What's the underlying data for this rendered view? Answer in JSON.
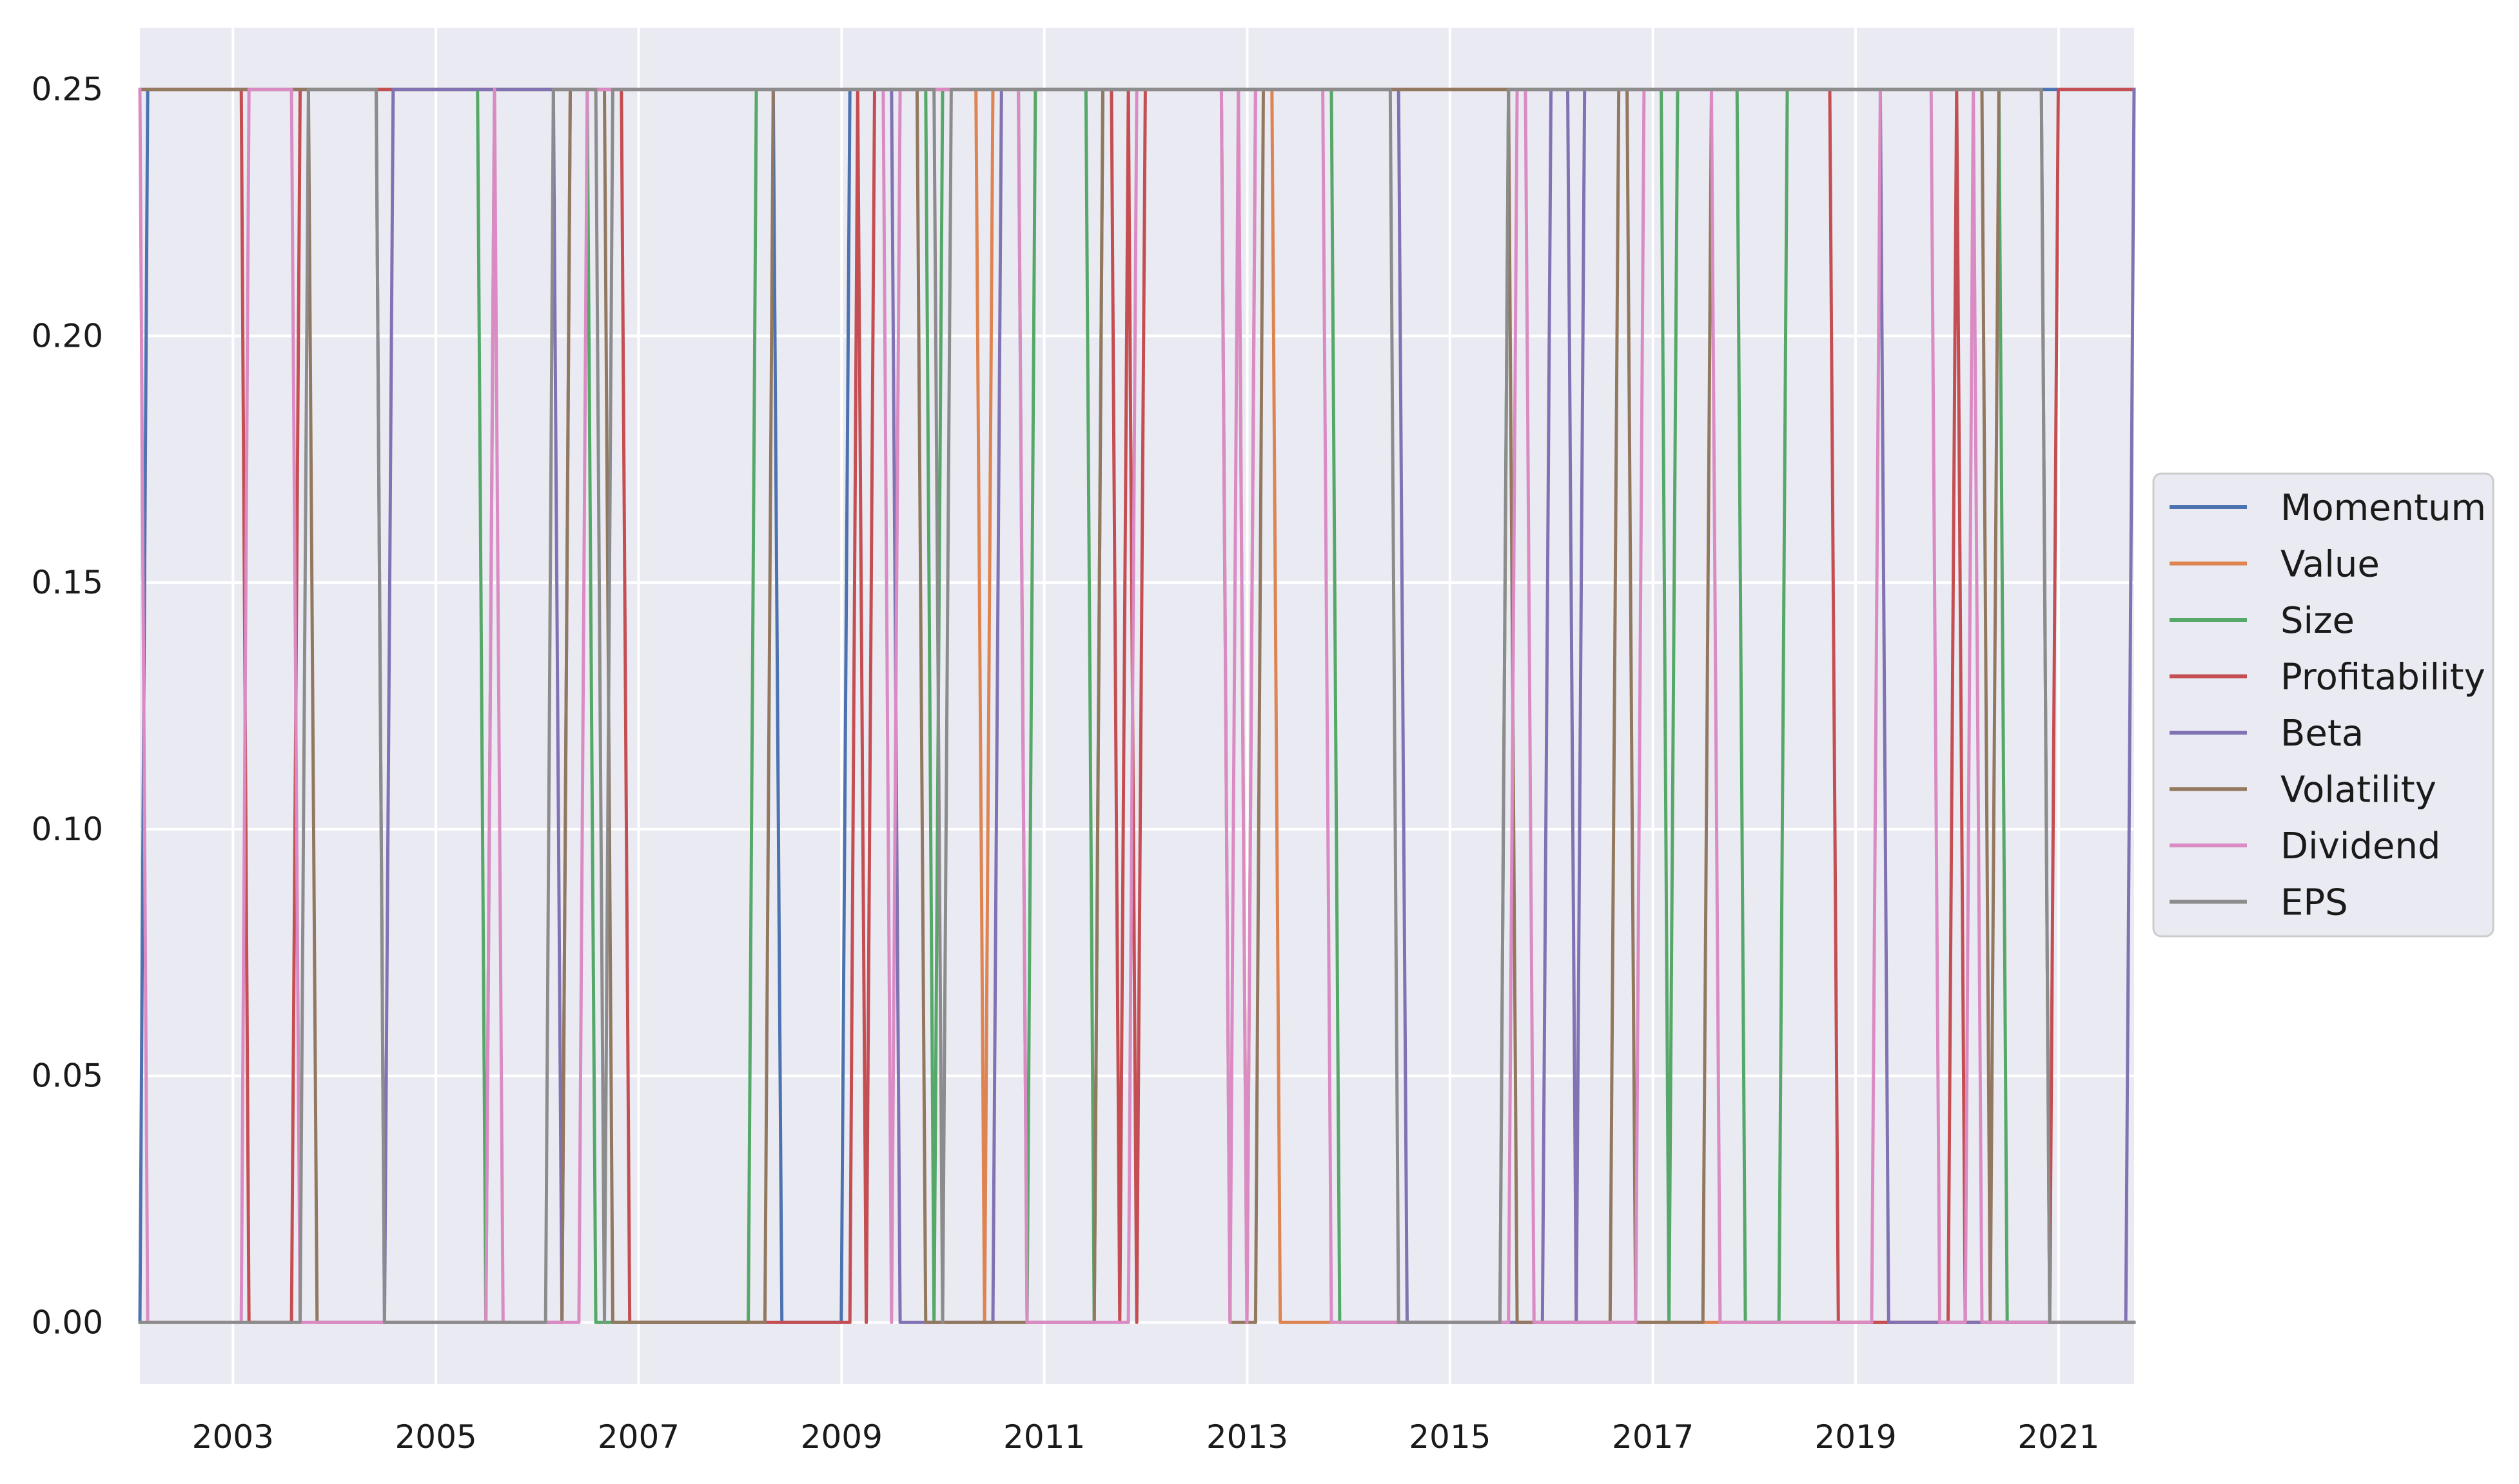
{
  "chart_data": {
    "type": "line",
    "title": "",
    "xlabel": "",
    "ylabel": "",
    "xlim": [
      "2002-01-31",
      "2021-09-30"
    ],
    "ylim": [
      -0.0125,
      0.2625
    ],
    "x_ticks": [
      "2003",
      "2005",
      "2007",
      "2009",
      "2011",
      "2013",
      "2015",
      "2017",
      "2019",
      "2021"
    ],
    "y_ticks": [
      "0.00",
      "0.05",
      "0.10",
      "0.15",
      "0.20",
      "0.25"
    ],
    "grid": true,
    "legend_position": "center-right, outside plot",
    "series": [
      {
        "name": "Momentum",
        "color": "#4c72b0",
        "points": [
          [
            "2002-01-31",
            0.0
          ],
          [
            "2002-02-28",
            0.25
          ],
          [
            "2008-04-30",
            0.25
          ],
          [
            "2008-05-31",
            0.0
          ],
          [
            "2008-12-31",
            0.0
          ],
          [
            "2009-01-31",
            0.25
          ],
          [
            "2021-09-30",
            0.25
          ]
        ]
      },
      {
        "name": "Value",
        "color": "#dd8452",
        "points": [
          [
            "2002-01-31",
            0.25
          ],
          [
            "2010-04-30",
            0.25
          ],
          [
            "2010-05-31",
            0.0
          ],
          [
            "2010-06-30",
            0.25
          ],
          [
            "2012-11-30",
            0.25
          ],
          [
            "2012-12-31",
            0.0
          ],
          [
            "2013-01-31",
            0.25
          ],
          [
            "2013-03-31",
            0.25
          ],
          [
            "2013-04-30",
            0.0
          ],
          [
            "2021-09-30",
            0.0
          ]
        ]
      },
      {
        "name": "Size",
        "color": "#55a868",
        "points": [
          [
            "2002-01-31",
            0.25
          ],
          [
            "2005-05-31",
            0.25
          ],
          [
            "2005-06-30",
            0.0
          ],
          [
            "2005-07-31",
            0.25
          ],
          [
            "2006-06-30",
            0.25
          ],
          [
            "2006-07-31",
            0.0
          ],
          [
            "2008-01-31",
            0.0
          ],
          [
            "2008-02-29",
            0.25
          ],
          [
            "2009-10-31",
            0.25
          ],
          [
            "2009-11-30",
            0.0
          ],
          [
            "2009-12-31",
            0.25
          ],
          [
            "2010-09-30",
            0.25
          ],
          [
            "2010-10-31",
            0.0
          ],
          [
            "2010-11-30",
            0.25
          ],
          [
            "2011-05-31",
            0.25
          ],
          [
            "2011-06-30",
            0.0
          ],
          [
            "2011-07-31",
            0.25
          ],
          [
            "2013-10-31",
            0.25
          ],
          [
            "2013-11-30",
            0.0
          ],
          [
            "2015-06-30",
            0.0
          ],
          [
            "2015-07-31",
            0.25
          ],
          [
            "2017-01-31",
            0.25
          ],
          [
            "2017-02-28",
            0.0
          ],
          [
            "2017-03-31",
            0.25
          ],
          [
            "2017-10-31",
            0.25
          ],
          [
            "2017-11-30",
            0.0
          ],
          [
            "2018-03-31",
            0.0
          ],
          [
            "2018-04-30",
            0.25
          ],
          [
            "2020-05-31",
            0.25
          ],
          [
            "2020-06-30",
            0.0
          ],
          [
            "2021-09-30",
            0.0
          ]
        ]
      },
      {
        "name": "Profitability",
        "color": "#c44e52",
        "points": [
          [
            "2002-01-31",
            0.25
          ],
          [
            "2003-01-31",
            0.25
          ],
          [
            "2003-02-28",
            0.0
          ],
          [
            "2003-07-31",
            0.0
          ],
          [
            "2003-08-31",
            0.25
          ],
          [
            "2006-10-31",
            0.25
          ],
          [
            "2006-11-30",
            0.0
          ],
          [
            "2009-01-31",
            0.0
          ],
          [
            "2009-02-28",
            0.25
          ],
          [
            "2009-03-31",
            0.0
          ],
          [
            "2009-04-30",
            0.25
          ],
          [
            "2011-08-31",
            0.25
          ],
          [
            "2011-09-30",
            0.0
          ],
          [
            "2011-10-31",
            0.25
          ],
          [
            "2011-11-30",
            0.0
          ],
          [
            "2011-12-31",
            0.25
          ],
          [
            "2018-09-30",
            0.25
          ],
          [
            "2018-10-31",
            0.0
          ],
          [
            "2019-11-30",
            0.0
          ],
          [
            "2019-12-31",
            0.25
          ],
          [
            "2020-01-31",
            0.0
          ],
          [
            "2020-11-30",
            0.0
          ],
          [
            "2020-12-31",
            0.25
          ],
          [
            "2021-09-30",
            0.25
          ]
        ]
      },
      {
        "name": "Beta",
        "color": "#8172b3",
        "points": [
          [
            "2002-01-31",
            0.25
          ],
          [
            "2004-05-31",
            0.25
          ],
          [
            "2004-06-30",
            0.0
          ],
          [
            "2004-07-31",
            0.25
          ],
          [
            "2006-02-28",
            0.25
          ],
          [
            "2006-03-31",
            0.0
          ],
          [
            "2006-04-30",
            0.25
          ],
          [
            "2009-06-30",
            0.25
          ],
          [
            "2009-07-31",
            0.0
          ],
          [
            "2010-06-30",
            0.0
          ],
          [
            "2010-07-31",
            0.25
          ],
          [
            "2014-06-30",
            0.25
          ],
          [
            "2014-07-31",
            0.0
          ],
          [
            "2015-11-30",
            0.0
          ],
          [
            "2015-12-31",
            0.25
          ],
          [
            "2016-02-29",
            0.25
          ],
          [
            "2016-03-31",
            0.0
          ],
          [
            "2016-04-30",
            0.25
          ],
          [
            "2019-03-31",
            0.25
          ],
          [
            "2019-04-30",
            0.0
          ],
          [
            "2021-08-31",
            0.0
          ],
          [
            "2021-09-30",
            0.25
          ]
        ]
      },
      {
        "name": "Volatility",
        "color": "#937860",
        "points": [
          [
            "2002-01-31",
            0.25
          ],
          [
            "2003-09-30",
            0.25
          ],
          [
            "2003-10-31",
            0.0
          ],
          [
            "2006-03-31",
            0.0
          ],
          [
            "2006-04-30",
            0.25
          ],
          [
            "2006-08-31",
            0.25
          ],
          [
            "2006-09-30",
            0.0
          ],
          [
            "2008-03-31",
            0.0
          ],
          [
            "2008-04-30",
            0.25
          ],
          [
            "2009-09-30",
            0.25
          ],
          [
            "2009-10-31",
            0.0
          ],
          [
            "2011-06-30",
            0.0
          ],
          [
            "2011-07-31",
            0.25
          ],
          [
            "2012-09-30",
            0.25
          ],
          [
            "2012-10-31",
            0.0
          ],
          [
            "2013-01-31",
            0.0
          ],
          [
            "2013-02-28",
            0.25
          ],
          [
            "2015-07-31",
            0.25
          ],
          [
            "2015-08-31",
            0.0
          ],
          [
            "2016-07-31",
            0.0
          ],
          [
            "2016-08-31",
            0.25
          ],
          [
            "2016-09-30",
            0.25
          ],
          [
            "2016-10-31",
            0.0
          ],
          [
            "2017-06-30",
            0.0
          ],
          [
            "2017-07-31",
            0.25
          ],
          [
            "2020-03-31",
            0.25
          ],
          [
            "2020-04-30",
            0.0
          ],
          [
            "2020-05-31",
            0.25
          ],
          [
            "2020-10-31",
            0.25
          ],
          [
            "2020-11-30",
            0.0
          ],
          [
            "2021-09-30",
            0.0
          ]
        ]
      },
      {
        "name": "Dividend",
        "color": "#da8bc3",
        "points": [
          [
            "2002-01-31",
            0.25
          ],
          [
            "2002-02-28",
            0.0
          ],
          [
            "2003-01-31",
            0.0
          ],
          [
            "2003-02-28",
            0.25
          ],
          [
            "2003-07-31",
            0.25
          ],
          [
            "2003-08-31",
            0.0
          ],
          [
            "2005-06-30",
            0.0
          ],
          [
            "2005-07-31",
            0.25
          ],
          [
            "2005-08-31",
            0.0
          ],
          [
            "2006-05-31",
            0.0
          ],
          [
            "2006-06-30",
            0.25
          ],
          [
            "2009-05-31",
            0.25
          ],
          [
            "2009-06-30",
            0.0
          ],
          [
            "2009-07-31",
            0.25
          ],
          [
            "2010-09-30",
            0.25
          ],
          [
            "2010-10-31",
            0.0
          ],
          [
            "2011-10-31",
            0.0
          ],
          [
            "2011-11-30",
            0.25
          ],
          [
            "2012-09-30",
            0.25
          ],
          [
            "2012-10-31",
            0.0
          ],
          [
            "2012-11-30",
            0.25
          ],
          [
            "2012-12-31",
            0.0
          ],
          [
            "2013-01-31",
            0.25
          ],
          [
            "2013-09-30",
            0.25
          ],
          [
            "2013-10-31",
            0.0
          ],
          [
            "2015-07-31",
            0.0
          ],
          [
            "2015-08-31",
            0.25
          ],
          [
            "2015-09-30",
            0.25
          ],
          [
            "2015-10-31",
            0.0
          ],
          [
            "2016-10-31",
            0.0
          ],
          [
            "2016-11-30",
            0.25
          ],
          [
            "2017-07-31",
            0.25
          ],
          [
            "2017-08-31",
            0.0
          ],
          [
            "2019-02-28",
            0.0
          ],
          [
            "2019-03-31",
            0.25
          ],
          [
            "2019-09-30",
            0.25
          ],
          [
            "2019-10-31",
            0.0
          ],
          [
            "2020-01-31",
            0.0
          ],
          [
            "2020-02-29",
            0.25
          ],
          [
            "2020-03-31",
            0.0
          ],
          [
            "2021-09-30",
            0.0
          ]
        ]
      },
      {
        "name": "EPS",
        "color": "#8c8c8c",
        "points": [
          [
            "2002-01-31",
            0.0
          ],
          [
            "2003-08-31",
            0.0
          ],
          [
            "2003-09-30",
            0.25
          ],
          [
            "2004-05-31",
            0.25
          ],
          [
            "2004-06-30",
            0.0
          ],
          [
            "2006-01-31",
            0.0
          ],
          [
            "2006-02-28",
            0.25
          ],
          [
            "2006-07-31",
            0.25
          ],
          [
            "2006-08-31",
            0.0
          ],
          [
            "2006-09-30",
            0.25
          ],
          [
            "2009-11-30",
            0.25
          ],
          [
            "2009-12-31",
            0.0
          ],
          [
            "2010-01-31",
            0.25
          ],
          [
            "2014-05-31",
            0.25
          ],
          [
            "2014-06-30",
            0.0
          ],
          [
            "2015-06-30",
            0.0
          ],
          [
            "2015-07-31",
            0.25
          ],
          [
            "2020-10-31",
            0.25
          ],
          [
            "2020-11-30",
            0.0
          ],
          [
            "2021-09-30",
            0.0
          ]
        ]
      }
    ]
  }
}
